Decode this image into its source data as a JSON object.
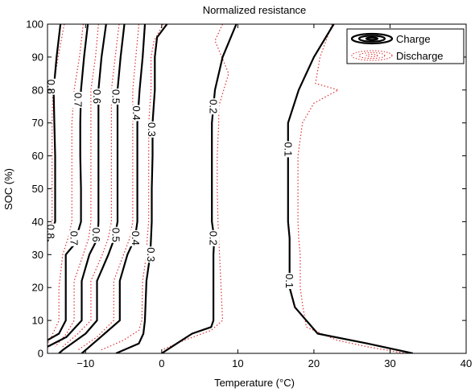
{
  "chart_data": {
    "type": "contour",
    "title": "Normalized resistance",
    "xlabel": "Temperature (°C)",
    "ylabel": "SOC (%)",
    "xlim": [
      -15,
      40
    ],
    "ylim": [
      0,
      100
    ],
    "xticks": [
      -10,
      0,
      10,
      20,
      30,
      40
    ],
    "yticks": [
      0,
      10,
      20,
      30,
      40,
      50,
      60,
      70,
      80,
      90,
      100
    ],
    "grid": false,
    "legend": {
      "placement": "top-right",
      "entries": [
        "Charge",
        "Discharge"
      ]
    },
    "series": [
      {
        "name": "Charge",
        "color": "#000000",
        "style": "solid",
        "levels": [
          {
            "level": "0.8",
            "points": [
              [
                -13.3,
                100
              ],
              [
                -13.8,
                90
              ],
              [
                -14.2,
                80
              ],
              [
                -14.1,
                70
              ],
              [
                -14.0,
                60
              ],
              [
                -14.0,
                50
              ],
              [
                -14.0,
                40
              ],
              [
                -15.0,
                34
              ]
            ],
            "labels": [
              [
                -14.5,
                81
              ],
              [
                -14.6,
                37
              ]
            ]
          },
          {
            "level": "0.7",
            "points": [
              [
                -9.7,
                100
              ],
              [
                -10.2,
                90
              ],
              [
                -10.6,
                80
              ],
              [
                -10.7,
                70
              ],
              [
                -10.7,
                60
              ],
              [
                -10.6,
                50
              ],
              [
                -10.6,
                40
              ],
              [
                -11.5,
                33
              ],
              [
                -12.6,
                30
              ],
              [
                -12.6,
                20
              ],
              [
                -12.6,
                10
              ],
              [
                -13.5,
                6
              ],
              [
                -15,
                4
              ]
            ],
            "labels": [
              [
                -11.0,
                77
              ],
              [
                -11.5,
                35
              ]
            ]
          },
          {
            "level": "0.6",
            "points": [
              [
                -7.3,
                100
              ],
              [
                -7.9,
                90
              ],
              [
                -8.3,
                80
              ],
              [
                -8.3,
                70
              ],
              [
                -8.3,
                60
              ],
              [
                -8.3,
                50
              ],
              [
                -8.3,
                40
              ],
              [
                -8.4,
                35
              ],
              [
                -9.5,
                30
              ],
              [
                -10.5,
                22
              ],
              [
                -10.5,
                10
              ],
              [
                -12.5,
                5
              ],
              [
                -15,
                2
              ]
            ],
            "labels": [
              [
                -8.5,
                78
              ],
              [
                -8.6,
                36
              ]
            ]
          },
          {
            "level": "0.5",
            "points": [
              [
                -4.9,
                100
              ],
              [
                -5.4,
                90
              ],
              [
                -5.8,
                80
              ],
              [
                -5.8,
                70
              ],
              [
                -5.8,
                60
              ],
              [
                -5.8,
                50
              ],
              [
                -5.8,
                40
              ],
              [
                -6.2,
                35
              ],
              [
                -7.0,
                30
              ],
              [
                -8.5,
                22
              ],
              [
                -8.5,
                10
              ],
              [
                -10,
                6
              ],
              [
                -13,
                1
              ],
              [
                -13.5,
                0
              ]
            ],
            "labels": [
              [
                -6.0,
                78
              ],
              [
                -6.0,
                36
              ]
            ]
          },
          {
            "level": "0.4",
            "points": [
              [
                -2.2,
                100
              ],
              [
                -2.5,
                90
              ],
              [
                -2.9,
                80
              ],
              [
                -3.2,
                70
              ],
              [
                -3.2,
                60
              ],
              [
                -3.2,
                50
              ],
              [
                -3.2,
                40
              ],
              [
                -3.5,
                35
              ],
              [
                -4.5,
                30
              ],
              [
                -5.5,
                22
              ],
              [
                -5.5,
                10
              ],
              [
                -7.5,
                6
              ],
              [
                -10,
                1
              ],
              [
                -10.5,
                0
              ]
            ],
            "labels": [
              [
                -3.3,
                73
              ],
              [
                -3.4,
                35
              ]
            ]
          },
          {
            "level": "0.3",
            "points": [
              [
                0.7,
                100
              ],
              [
                -0.6,
                96
              ],
              [
                -0.9,
                90
              ],
              [
                -0.9,
                80
              ],
              [
                -1.2,
                70
              ],
              [
                -1.2,
                60
              ],
              [
                -1.3,
                50
              ],
              [
                -1.3,
                40
              ],
              [
                -1.4,
                35
              ],
              [
                -1.5,
                30
              ],
              [
                -2.0,
                22
              ],
              [
                -2.2,
                10
              ],
              [
                -2.4,
                6
              ],
              [
                -3,
                3
              ],
              [
                -6,
                0
              ]
            ],
            "labels": [
              [
                -1.3,
                68
              ],
              [
                -1.4,
                30
              ]
            ]
          },
          {
            "level": "0.2",
            "points": [
              [
                9.8,
                100
              ],
              [
                8.0,
                90
              ],
              [
                7.0,
                80
              ],
              [
                6.6,
                70
              ],
              [
                6.6,
                60
              ],
              [
                6.6,
                50
              ],
              [
                6.6,
                40
              ],
              [
                6.9,
                35
              ],
              [
                6.8,
                30
              ],
              [
                6.8,
                20
              ],
              [
                6.8,
                10
              ],
              [
                6.5,
                8
              ],
              [
                4.0,
                6
              ],
              [
                2,
                3
              ],
              [
                0,
                0
              ]
            ],
            "labels": [
              [
                6.8,
                75
              ],
              [
                6.8,
                35
              ]
            ]
          },
          {
            "level": "0.1",
            "points": [
              [
                22.6,
                100
              ],
              [
                20.0,
                90
              ],
              [
                18.0,
                80
              ],
              [
                16.6,
                70
              ],
              [
                16.6,
                60
              ],
              [
                16.6,
                50
              ],
              [
                16.6,
                40
              ],
              [
                16.8,
                35
              ],
              [
                16.8,
                30
              ],
              [
                16.8,
                20
              ],
              [
                17.5,
                14
              ],
              [
                20.5,
                6
              ],
              [
                27,
                3
              ],
              [
                33,
                0
              ]
            ],
            "labels": [
              [
                16.6,
                62
              ],
              [
                16.8,
                22
              ]
            ]
          }
        ]
      },
      {
        "name": "Discharge",
        "color": "#e03030",
        "style": "dotted",
        "levels": [
          {
            "level": "0.8",
            "points": [
              [
                -12.8,
                100
              ],
              [
                -13.6,
                90
              ],
              [
                -14.3,
                80
              ],
              [
                -14.4,
                70
              ],
              [
                -14.4,
                60
              ],
              [
                -14.4,
                50
              ],
              [
                -14.4,
                40
              ],
              [
                -14.8,
                36
              ],
              [
                -15,
                35
              ]
            ]
          },
          {
            "level": "0.7",
            "points": [
              [
                -10.3,
                100
              ],
              [
                -10.8,
                90
              ],
              [
                -11.5,
                80
              ],
              [
                -11.8,
                70
              ],
              [
                -11.8,
                60
              ],
              [
                -11.8,
                50
              ],
              [
                -11.8,
                40
              ],
              [
                -12.3,
                35
              ],
              [
                -13.0,
                30
              ],
              [
                -13.5,
                20
              ],
              [
                -13.5,
                10
              ],
              [
                -14.5,
                5
              ],
              [
                -15,
                3
              ]
            ]
          },
          {
            "level": "0.6",
            "points": [
              [
                -8.3,
                100
              ],
              [
                -8.7,
                90
              ],
              [
                -9.3,
                80
              ],
              [
                -9.3,
                70
              ],
              [
                -9.3,
                60
              ],
              [
                -9.3,
                50
              ],
              [
                -9.3,
                40
              ],
              [
                -9.6,
                35
              ],
              [
                -10.3,
                30
              ],
              [
                -11.5,
                22
              ],
              [
                -11.5,
                10
              ],
              [
                -12.5,
                6
              ],
              [
                -14,
                2
              ]
            ]
          },
          {
            "level": "0.5",
            "points": [
              [
                -5.6,
                100
              ],
              [
                -6.1,
                90
              ],
              [
                -6.6,
                80
              ],
              [
                -6.6,
                70
              ],
              [
                -6.6,
                60
              ],
              [
                -6.6,
                50
              ],
              [
                -6.6,
                40
              ],
              [
                -7.0,
                35
              ],
              [
                -7.8,
                30
              ],
              [
                -9.3,
                22
              ],
              [
                -9.3,
                10
              ],
              [
                -11,
                6
              ],
              [
                -13,
                2
              ]
            ]
          },
          {
            "level": "0.4",
            "points": [
              [
                -3.0,
                100
              ],
              [
                -3.4,
                90
              ],
              [
                -3.8,
                80
              ],
              [
                -3.8,
                70
              ],
              [
                -3.8,
                60
              ],
              [
                -3.8,
                50
              ],
              [
                -3.8,
                40
              ],
              [
                -4.2,
                35
              ],
              [
                -5.0,
                30
              ],
              [
                -6.3,
                22
              ],
              [
                -6.3,
                10
              ],
              [
                -8.5,
                5
              ],
              [
                -11,
                1
              ]
            ]
          },
          {
            "level": "0.3",
            "points": [
              [
                0.2,
                100
              ],
              [
                -1.0,
                95
              ],
              [
                -1.4,
                90
              ],
              [
                -1.4,
                80
              ],
              [
                -1.7,
                70
              ],
              [
                -1.7,
                60
              ],
              [
                -1.7,
                50
              ],
              [
                -1.7,
                40
              ],
              [
                -1.9,
                35
              ],
              [
                -2.0,
                30
              ],
              [
                -2.5,
                22
              ],
              [
                -2.6,
                10
              ],
              [
                -3.0,
                7
              ],
              [
                -5,
                4
              ],
              [
                -8,
                1
              ]
            ]
          },
          {
            "level": "0.2",
            "points": [
              [
                8.0,
                100
              ],
              [
                7.0,
                95
              ],
              [
                8.8,
                85
              ],
              [
                7.5,
                75
              ],
              [
                7.5,
                70
              ],
              [
                7.3,
                60
              ],
              [
                7.3,
                50
              ],
              [
                7.4,
                40
              ],
              [
                7.5,
                35
              ],
              [
                7.6,
                30
              ],
              [
                7.8,
                20
              ],
              [
                8.0,
                10
              ],
              [
                6.5,
                7
              ],
              [
                3,
                4
              ],
              [
                0,
                1
              ]
            ]
          },
          {
            "level": "0.1",
            "points": [
              [
                22.4,
                100
              ],
              [
                20.8,
                90
              ],
              [
                20.2,
                82
              ],
              [
                23.2,
                80
              ],
              [
                20.0,
                76
              ],
              [
                18.5,
                70
              ],
              [
                17.9,
                60
              ],
              [
                17.9,
                50
              ],
              [
                17.9,
                40
              ],
              [
                18.0,
                35
              ],
              [
                18.2,
                30
              ],
              [
                18.2,
                20
              ],
              [
                18.5,
                15
              ],
              [
                19,
                8
              ],
              [
                23,
                4
              ],
              [
                27,
                2
              ],
              [
                32,
                0
              ]
            ]
          }
        ]
      }
    ]
  }
}
